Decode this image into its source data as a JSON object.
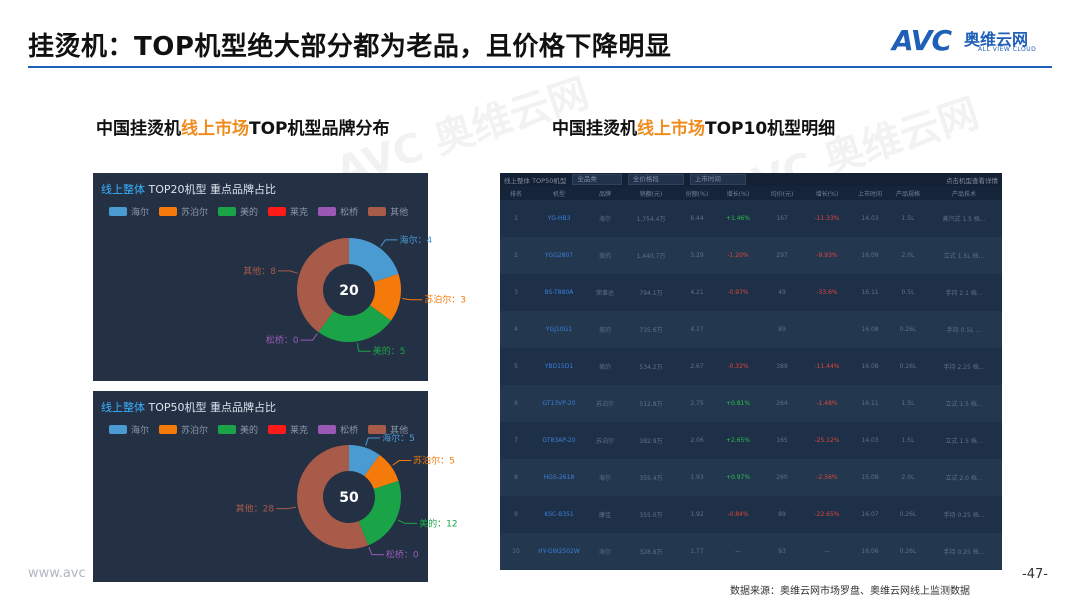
{
  "title": "挂烫机：TOP机型绝大部分都为老品，且价格下降明显",
  "logo": {
    "avc": "AVC",
    "cn": "奥维云网",
    "en": "ALL VIEW CLOUD"
  },
  "left_subtitle": {
    "a": "中国挂烫机",
    "b": "线上市场",
    "c": "TOP机型品牌分布"
  },
  "right_subtitle": {
    "a": "中国挂烫机",
    "b": "线上市场",
    "c": "TOP10机型明细"
  },
  "legend": [
    {
      "name": "海尔",
      "color": "#4a9bd1"
    },
    {
      "name": "苏泊尔",
      "color": "#f47a0a"
    },
    {
      "name": "美的",
      "color": "#1aa447"
    },
    {
      "name": "莱克",
      "color": "#ff1a1a"
    },
    {
      "name": "松桥",
      "color": "#9b59b6"
    },
    {
      "name": "其他",
      "color": "#a95b4a"
    }
  ],
  "chart_data": [
    {
      "type": "pie",
      "title": "线上整体 TOP20机型 重点品牌占比",
      "center_label": "20",
      "slices": [
        {
          "name": "海尔",
          "value": 4,
          "color": "#4a9bd1",
          "label": "海尔：4"
        },
        {
          "name": "苏泊尔",
          "value": 3,
          "color": "#f47a0a",
          "label": "苏泊尔：3"
        },
        {
          "name": "美的",
          "value": 5,
          "color": "#1aa447",
          "label": "美的：5"
        },
        {
          "name": "松桥",
          "value": 0,
          "color": "#9b59b6",
          "label": "松桥：0"
        },
        {
          "name": "其他",
          "value": 8,
          "color": "#a95b4a",
          "label": "其他：8"
        }
      ]
    },
    {
      "type": "pie",
      "title": "线上整体 TOP50机型 重点品牌占比",
      "center_label": "50",
      "slices": [
        {
          "name": "海尔",
          "value": 5,
          "color": "#4a9bd1",
          "label": "海尔：5"
        },
        {
          "name": "苏泊尔",
          "value": 5,
          "color": "#f47a0a",
          "label": "苏泊尔：5"
        },
        {
          "name": "美的",
          "value": 12,
          "color": "#1aa447",
          "label": "美的：12"
        },
        {
          "name": "松桥",
          "value": 0,
          "color": "#9b59b6",
          "label": "松桥：0"
        },
        {
          "name": "其他",
          "value": 28,
          "color": "#a95b4a",
          "label": "其他：28"
        }
      ]
    }
  ],
  "table": {
    "toolbar": [
      "线上整体 TOP50机型",
      "全品类",
      "全价格段",
      "上市时间",
      "点击机型查看详情"
    ],
    "headers": [
      "排名",
      "机型",
      "品牌",
      "销额(元)",
      "份额(%)",
      "增长(%)",
      "均价(元)",
      "增长(%)",
      "上市时间",
      "产品规格",
      "产品技术"
    ],
    "rows": [
      [
        "1",
        "YG-HB3",
        "海尔",
        "1,754.4万",
        "6.44",
        "+1.46%",
        "167",
        "-11.33%",
        "14.03",
        "1.5L",
        "蒸汽式 1.5 档..."
      ],
      [
        "2",
        "YGG2807",
        "美的",
        "1,440.7万",
        "5.29",
        "-1.20%",
        "297",
        "-9.93%",
        "16.09",
        "2.0L",
        "立式 1.5L 档..."
      ],
      [
        "3",
        "BS-T880A",
        "荣事达",
        "794.1万",
        "4.21",
        "-0.97%",
        "49",
        "-33.6%",
        "16.11",
        "0.5L",
        "手持 2.1 档..."
      ],
      [
        "4",
        "YGJ10G1",
        "美的",
        "735.6万",
        "4.17",
        "",
        "89",
        "",
        "16.08",
        "0.26L",
        "手持 0.5L ..."
      ],
      [
        "5",
        "YBD15D1",
        "美的",
        "534.2万",
        "2.67",
        "-0.32%",
        "389",
        "-11.44%",
        "16.08",
        "0.26L",
        "手持 2.25 档..."
      ],
      [
        "6",
        "GT13VP-20",
        "苏泊尔",
        "512.8万",
        "2.75",
        "+0.81%",
        "264",
        "-1.48%",
        "16.11",
        "1.5L",
        "立式 1.5 档..."
      ],
      [
        "7",
        "GT83AP-20",
        "苏泊尔",
        "382.9万",
        "2.06",
        "+2.65%",
        "165",
        "-25.12%",
        "14.03",
        "1.5L",
        "立式 1.5 档..."
      ],
      [
        "8",
        "HGS-2618",
        "海尔",
        "355.4万",
        "1.93",
        "+0.97%",
        "260",
        "-2.56%",
        "15.08",
        "2.0L",
        "立式 2.0 档..."
      ],
      [
        "9",
        "KSC-8351",
        "康佳",
        "355.0万",
        "1.92",
        "-0.84%",
        "89",
        "-22.65%",
        "16.07",
        "0.26L",
        "手持 0.25 档..."
      ],
      [
        "10",
        "HY-GW2502W",
        "海尔",
        "328.8万",
        "1.77",
        "—",
        "93",
        "—",
        "16.06",
        "0.26L",
        "手持 0.25 档..."
      ]
    ]
  },
  "source": "数据来源：奥维云网市场罗盘、奥维云网线上监测数据",
  "page": "-47-",
  "website": "www.avc"
}
